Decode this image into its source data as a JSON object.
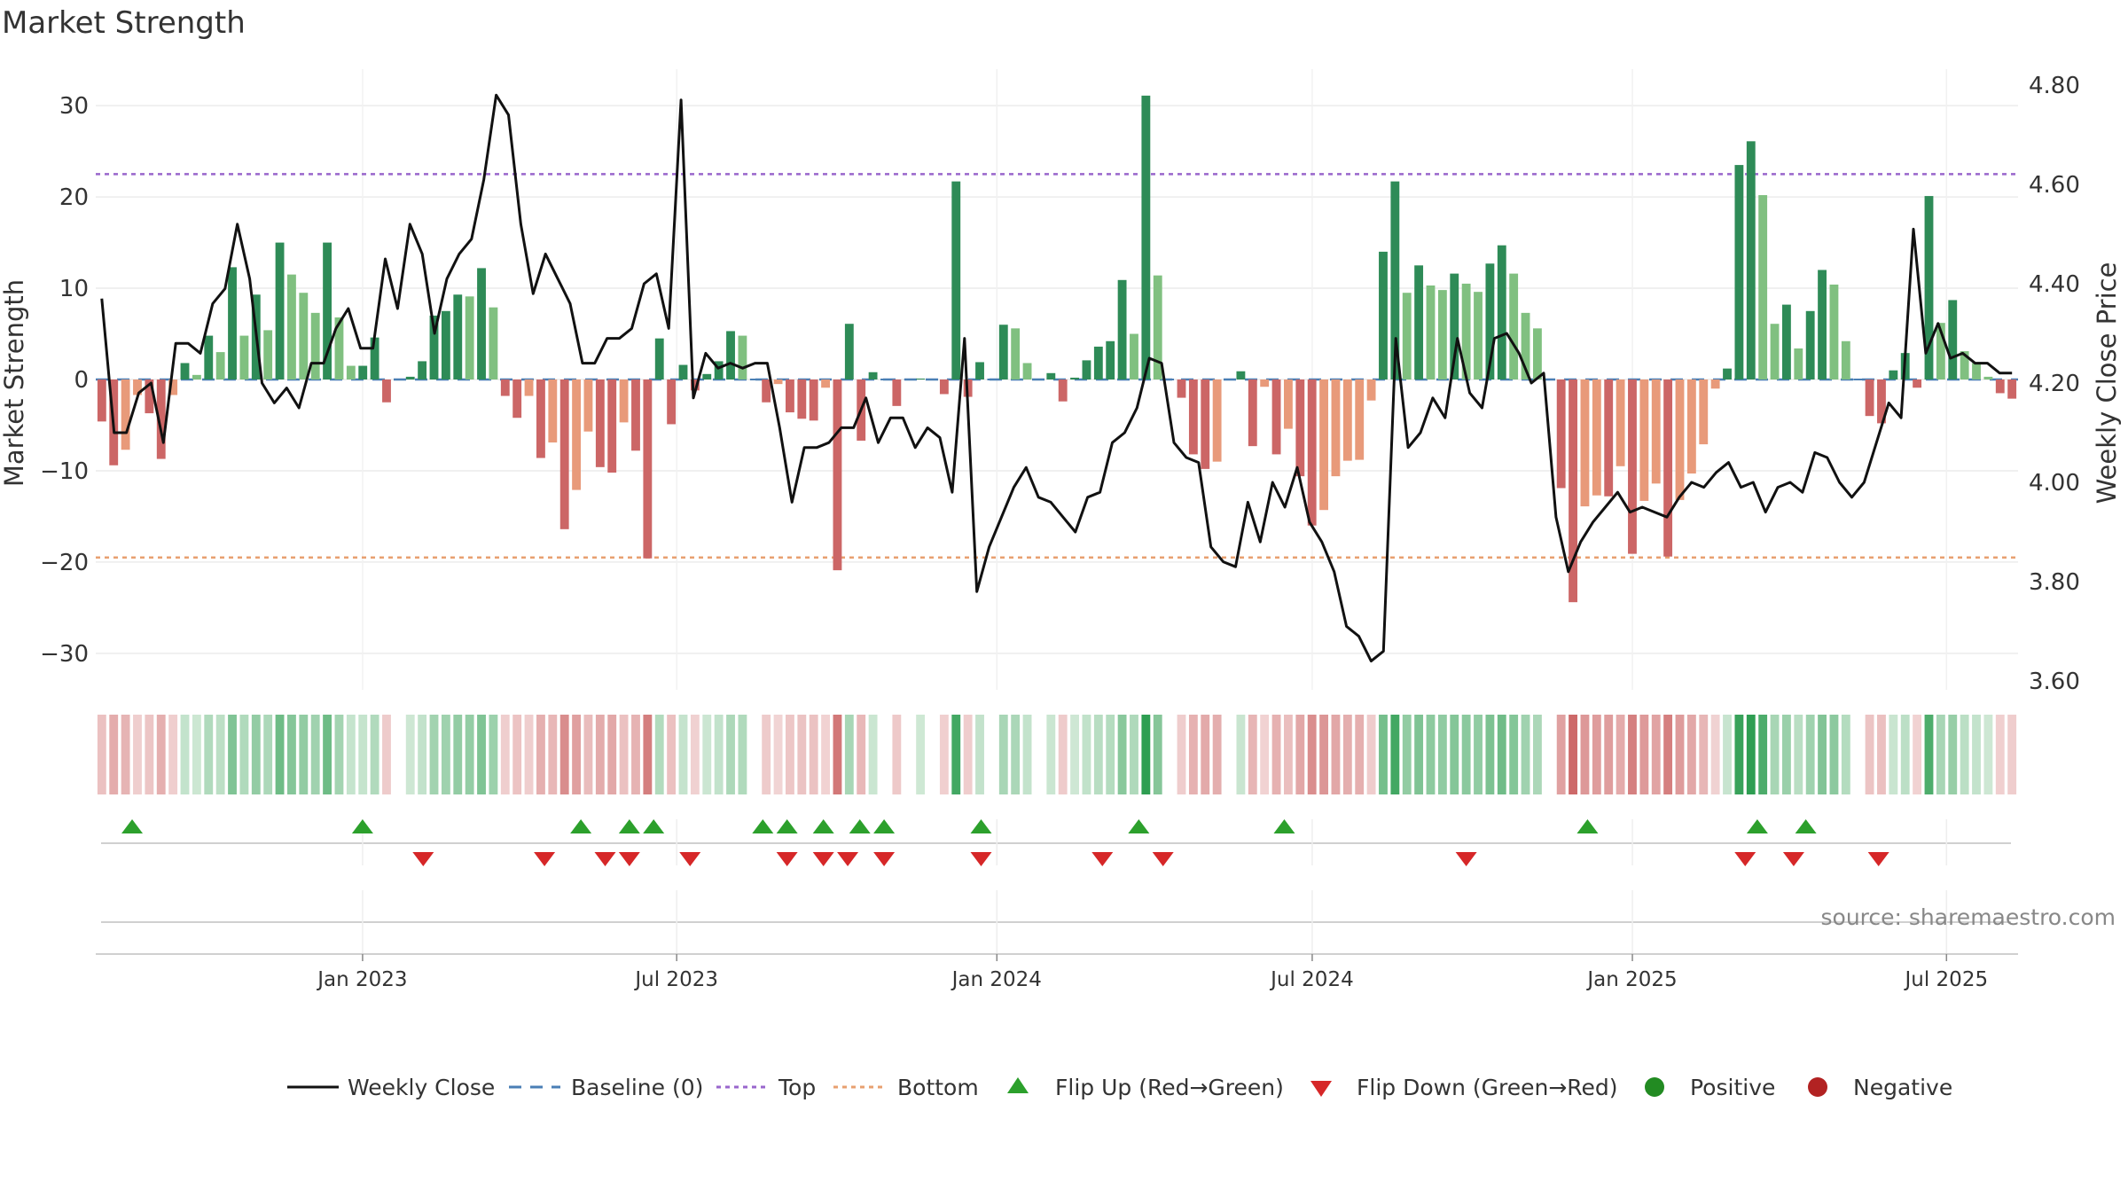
{
  "chart_data": {
    "type": "bar+line",
    "title": "Market Strength",
    "ylabel_left": "Market Strength",
    "ylabel_right": "Weekly Close Price",
    "ylim_left": [
      -34,
      34
    ],
    "ylim_right": [
      3.6,
      4.8
    ],
    "yticks_left": [
      30,
      20,
      10,
      0,
      -10,
      -20,
      -30
    ],
    "yticks_left_labels": [
      "30",
      "20",
      "10",
      "0",
      "−10",
      "−20",
      "−30"
    ],
    "yticks_right": [
      4.8,
      4.6,
      4.4,
      4.2,
      4.0,
      3.8,
      3.6
    ],
    "yticks_right_labels": [
      "4.80",
      "4.60",
      "4.40",
      "4.20",
      "4.00",
      "3.80",
      "3.60"
    ],
    "x_start_week": -22,
    "x_end_week": 136.5,
    "xticks": [
      {
        "label": "Jan 2023",
        "week": 0
      },
      {
        "label": "Jul 2023",
        "week": 25.9
      },
      {
        "label": "Jan 2024",
        "week": 52.3
      },
      {
        "label": "Jul 2024",
        "week": 78.3
      },
      {
        "label": "Jan 2025",
        "week": 104.7
      },
      {
        "label": "Jul 2025",
        "week": 130.6
      }
    ],
    "top_line": 22.5,
    "bottom_line": -19.5,
    "baseline": 0,
    "strength": [
      -4.6,
      -9.4,
      -7.7,
      -1.7,
      -3.7,
      -8.7,
      -1.7,
      1.8,
      0.5,
      4.8,
      3.0,
      12.3,
      4.8,
      9.3,
      5.4,
      15.0,
      11.5,
      9.5,
      7.3,
      15.0,
      6.8,
      1.5,
      1.5,
      4.6,
      -2.5,
      0,
      0.3,
      2.0,
      7.0,
      7.5,
      9.3,
      9.1,
      12.2,
      7.9,
      -1.8,
      -4.2,
      -1.8,
      -8.6,
      -6.9,
      -16.4,
      -12.1,
      -5.7,
      -9.6,
      -10.2,
      -4.7,
      -7.8,
      -19.6,
      4.5,
      -4.9,
      1.6,
      -1.2,
      0.6,
      2.0,
      5.3,
      4.8,
      0,
      -2.5,
      -0.5,
      -3.6,
      -4.3,
      -4.5,
      -0.9,
      -20.9,
      6.1,
      -6.7,
      0.8,
      0,
      -2.9,
      0,
      0.1,
      0,
      -1.6,
      21.7,
      -1.9,
      1.9,
      0,
      6.0,
      5.6,
      1.8,
      0,
      0.7,
      -2.4,
      0.2,
      2.1,
      3.6,
      4.2,
      10.9,
      5.0,
      31.1,
      11.4,
      0,
      -2.0,
      -8.2,
      -9.8,
      -9.0,
      0,
      0.9,
      -7.3,
      -0.8,
      -8.2,
      -5.4,
      -10.6,
      -16.0,
      -14.3,
      -10.6,
      -8.9,
      -8.8,
      -2.3,
      14.0,
      21.7,
      9.5,
      12.5,
      10.3,
      9.8,
      11.6,
      10.5,
      9.6,
      12.7,
      14.7,
      11.6,
      7.3,
      5.6,
      0,
      -11.9,
      -24.4,
      -13.9,
      -12.7,
      -12.8,
      -9.5,
      -19.1,
      -13.3,
      -11.4,
      -19.4,
      -13.2,
      -10.3,
      -7.1,
      -1.0,
      1.2,
      23.5,
      26.1,
      20.2,
      6.1,
      8.2,
      3.4,
      7.5,
      12.0,
      10.4,
      4.2,
      0,
      -4.0,
      -4.8,
      1.0,
      2.9,
      -0.9,
      20.1,
      6.2,
      8.7,
      3.1,
      1.8,
      0.3,
      -1.5,
      -2.1
    ],
    "weekly_close": [
      4.37,
      4.1,
      4.1,
      4.18,
      4.2,
      4.08,
      4.28,
      4.28,
      4.26,
      4.36,
      4.39,
      4.52,
      4.41,
      4.2,
      4.16,
      4.19,
      4.15,
      4.24,
      4.24,
      4.31,
      4.35,
      4.27,
      4.27,
      4.45,
      4.35,
      4.52,
      4.46,
      4.3,
      4.41,
      4.46,
      4.49,
      4.61,
      4.78,
      4.74,
      4.52,
      4.38,
      4.46,
      4.41,
      4.36,
      4.24,
      4.24,
      4.29,
      4.29,
      4.31,
      4.4,
      4.42,
      4.31,
      4.77,
      4.17,
      4.26,
      4.23,
      4.24,
      4.23,
      4.24,
      4.24,
      4.11,
      3.96,
      4.07,
      4.07,
      4.08,
      4.11,
      4.11,
      4.17,
      4.08,
      4.13,
      4.13,
      4.07,
      4.11,
      4.09,
      3.98,
      4.29,
      3.78,
      3.87,
      3.93,
      3.99,
      4.03,
      3.97,
      3.96,
      3.93,
      3.9,
      3.97,
      3.98,
      4.08,
      4.1,
      4.15,
      4.25,
      4.24,
      4.08,
      4.05,
      4.04,
      3.87,
      3.84,
      3.83,
      3.96,
      3.88,
      4.0,
      3.95,
      4.03,
      3.92,
      3.88,
      3.82,
      3.71,
      3.69,
      3.64,
      3.66,
      4.29,
      4.07,
      4.1,
      4.17,
      4.13,
      4.29,
      4.18,
      4.15,
      4.29,
      4.3,
      4.26,
      4.2,
      4.22,
      3.93,
      3.82,
      3.88,
      3.92,
      3.95,
      3.98,
      3.94,
      3.95,
      3.94,
      3.93,
      3.97,
      4.0,
      3.99,
      4.02,
      4.04,
      3.99,
      4.0,
      3.94,
      3.99,
      4.0,
      3.98,
      4.06,
      4.05,
      4.0,
      3.97,
      4.0,
      4.08,
      4.16,
      4.13,
      4.51,
      4.26,
      4.32,
      4.25,
      4.26,
      4.24,
      4.24,
      4.22,
      4.22
    ],
    "signal_flips_up_weeks": [
      -19,
      0,
      18,
      22,
      24,
      33,
      35,
      38,
      41,
      43,
      51,
      64,
      76,
      101,
      115,
      119
    ],
    "signal_flips_down_weeks": [
      5,
      15,
      20,
      22,
      27,
      35,
      38,
      40,
      43,
      51,
      61,
      66,
      91,
      114,
      118,
      125
    ],
    "annotation": "source: sharemaestro.com",
    "legend": {
      "entries": [
        "Weekly Close",
        "Baseline (0)",
        "Top",
        "Bottom",
        "Flip Up (Red→Green)",
        "Flip Down (Green→Red)",
        "Positive",
        "Negative"
      ]
    },
    "colors": {
      "strong_positive": "#2e8b57",
      "weak_positive": "#80c080",
      "strong_negative": "#cc6666",
      "weak_negative": "#e89a7a",
      "line": "#111111",
      "baseline": "#4a7fb5",
      "top": "#9966cc",
      "bottom": "#e8a070",
      "flip_up": "#2ca02c",
      "flip_down": "#d62728",
      "positive": "#228b22",
      "negative": "#b22222",
      "heat_pos_light": "#cfe8d5",
      "heat_pos_dark": "#2e9e52",
      "heat_neg_light": "#f2d6d6",
      "heat_neg_dark": "#cc6666"
    }
  }
}
